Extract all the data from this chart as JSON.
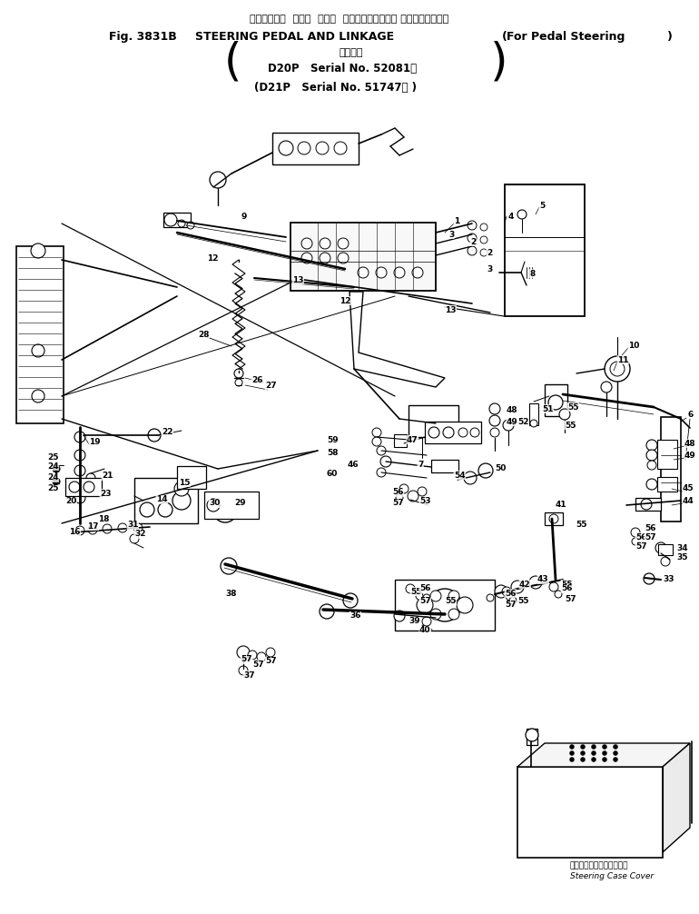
{
  "bg_color": "#ffffff",
  "text_color": "#000000",
  "fig_width": 7.7,
  "fig_height": 10.06,
  "dpi": 100,
  "title": {
    "jp_line": "ステアリング  ペダル  および  リンケージ（ペダル ステアリング用）",
    "en_fig": "Fig. 3831B",
    "en_main": "STEERING PEDAL AND LINKAGE",
    "en_sub": "(For Pedal Steering)",
    "jp_serial": "適用号機",
    "serial1": "D20P   Serial No. 52081～",
    "serial2": "(D21P   Serial No. 51747～ )"
  },
  "annotation": {
    "jp": "ステアリングケースカバー",
    "en": "Steering Case Cover"
  }
}
